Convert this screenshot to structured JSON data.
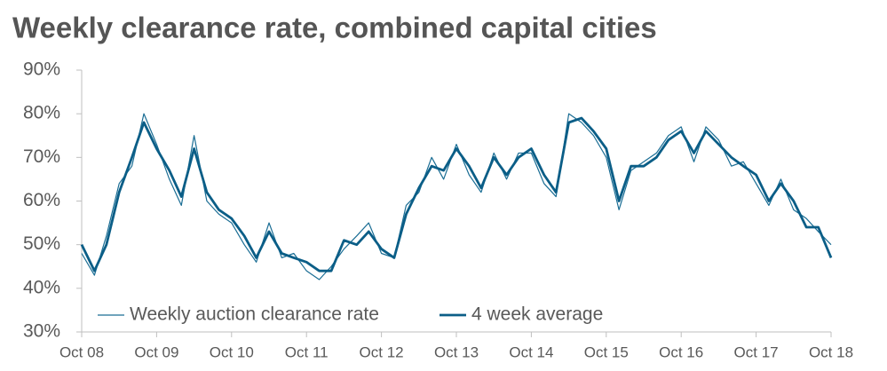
{
  "chart_data": {
    "type": "line",
    "title": "Weekly clearance rate, combined capital cities",
    "x": [
      2008.75,
      2008.92,
      2009.08,
      2009.25,
      2009.42,
      2009.58,
      2009.75,
      2009.92,
      2010.08,
      2010.25,
      2010.42,
      2010.58,
      2010.75,
      2010.92,
      2011.08,
      2011.25,
      2011.42,
      2011.58,
      2011.75,
      2011.92,
      2012.08,
      2012.25,
      2012.42,
      2012.58,
      2012.75,
      2012.92,
      2013.08,
      2013.25,
      2013.42,
      2013.58,
      2013.75,
      2013.92,
      2014.08,
      2014.25,
      2014.42,
      2014.58,
      2014.75,
      2014.92,
      2015.08,
      2015.25,
      2015.42,
      2015.58,
      2015.75,
      2015.92,
      2016.08,
      2016.25,
      2016.42,
      2016.58,
      2016.75,
      2016.92,
      2017.08,
      2017.25,
      2017.42,
      2017.58,
      2017.75,
      2017.92,
      2018.08,
      2018.25,
      2018.42,
      2018.58,
      2018.75
    ],
    "series": [
      {
        "name": "Weekly auction clearance rate",
        "color": "#1a6d94",
        "values": [
          48,
          43,
          52,
          64,
          68,
          80,
          73,
          65,
          59,
          75,
          60,
          57,
          55,
          50,
          46,
          55,
          47,
          48,
          44,
          42,
          45,
          49,
          52,
          55,
          48,
          47,
          59,
          62,
          70,
          65,
          73,
          66,
          62,
          71,
          65,
          71,
          71,
          64,
          61,
          80,
          78,
          75,
          70,
          58,
          67,
          69,
          71,
          75,
          77,
          69,
          77,
          74,
          68,
          69,
          64,
          59,
          65,
          58,
          56,
          53,
          50
        ]
      },
      {
        "name": "4 week average",
        "color": "#0b5e87",
        "values": [
          50,
          44,
          50,
          62,
          70,
          78,
          72,
          67,
          61,
          72,
          62,
          58,
          56,
          52,
          47,
          53,
          48,
          47,
          46,
          44,
          44,
          51,
          50,
          53,
          49,
          47,
          57,
          63,
          68,
          67,
          72,
          68,
          63,
          70,
          66,
          70,
          72,
          66,
          62,
          78,
          79,
          76,
          72,
          60,
          68,
          68,
          70,
          74,
          76,
          71,
          76,
          73,
          70,
          68,
          66,
          60,
          64,
          60,
          54,
          54,
          47
        ]
      }
    ],
    "xlim": [
      2008.75,
      2018.75
    ],
    "xticks": [
      {
        "value": 2008.75,
        "label": "Oct 08"
      },
      {
        "value": 2009.75,
        "label": "Oct 09"
      },
      {
        "value": 2010.75,
        "label": "Oct 10"
      },
      {
        "value": 2011.75,
        "label": "Oct 11"
      },
      {
        "value": 2012.75,
        "label": "Oct 12"
      },
      {
        "value": 2013.75,
        "label": "Oct 13"
      },
      {
        "value": 2014.75,
        "label": "Oct 14"
      },
      {
        "value": 2015.75,
        "label": "Oct 15"
      },
      {
        "value": 2016.75,
        "label": "Oct 16"
      },
      {
        "value": 2017.75,
        "label": "Oct 17"
      },
      {
        "value": 2018.75,
        "label": "Oct 18"
      }
    ],
    "ylim": [
      30,
      90
    ],
    "yticks": [
      {
        "value": 30,
        "label": "30%"
      },
      {
        "value": 40,
        "label": "40%"
      },
      {
        "value": 50,
        "label": "50%"
      },
      {
        "value": 60,
        "label": "60%"
      },
      {
        "value": 70,
        "label": "70%"
      },
      {
        "value": 80,
        "label": "80%"
      },
      {
        "value": 90,
        "label": "90%"
      }
    ],
    "grid": false,
    "legend": "bottom-left"
  }
}
